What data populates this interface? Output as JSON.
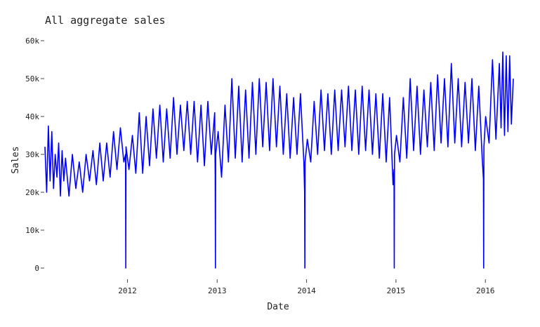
{
  "chart_data": {
    "type": "line",
    "title": "All aggregate sales",
    "xlabel": "Date",
    "ylabel": "Sales",
    "x_type": "date",
    "xlim": [
      "2011-01-29",
      "2016-04-24"
    ],
    "ylim": [
      0,
      60000
    ],
    "y_ticks": [
      0,
      10000,
      20000,
      30000,
      40000,
      50000,
      60000
    ],
    "y_tick_labels": [
      "0",
      "10k",
      "20k",
      "30k",
      "40k",
      "50k",
      "60k"
    ],
    "x_ticks": [
      "2012-01-01",
      "2013-01-01",
      "2014-01-01",
      "2015-01-01",
      "2016-01-01"
    ],
    "x_tick_labels": [
      "2012",
      "2013",
      "2014",
      "2015",
      "2016"
    ],
    "grid": false,
    "legend": "none",
    "series": [
      {
        "color": "#0000ff",
        "x": [
          "2011-01-29",
          "2011-02-05",
          "2011-02-12",
          "2011-02-19",
          "2011-02-26",
          "2011-03-05",
          "2011-03-12",
          "2011-03-19",
          "2011-03-26",
          "2011-04-02",
          "2011-04-09",
          "2011-04-16",
          "2011-04-23",
          "2011-05-07",
          "2011-05-21",
          "2011-06-04",
          "2011-06-18",
          "2011-07-02",
          "2011-07-16",
          "2011-07-30",
          "2011-08-13",
          "2011-08-27",
          "2011-09-10",
          "2011-09-24",
          "2011-10-08",
          "2011-10-22",
          "2011-11-05",
          "2011-11-19",
          "2011-12-03",
          "2011-12-17",
          "2011-12-24",
          "2011-12-25",
          "2011-12-26",
          "2012-01-07",
          "2012-01-21",
          "2012-02-04",
          "2012-02-18",
          "2012-03-03",
          "2012-03-17",
          "2012-03-31",
          "2012-04-14",
          "2012-04-28",
          "2012-05-12",
          "2012-05-26",
          "2012-06-09",
          "2012-06-23",
          "2012-07-07",
          "2012-07-21",
          "2012-08-04",
          "2012-08-18",
          "2012-09-01",
          "2012-09-15",
          "2012-09-29",
          "2012-10-13",
          "2012-10-27",
          "2012-11-10",
          "2012-11-24",
          "2012-12-08",
          "2012-12-22",
          "2012-12-24",
          "2012-12-25",
          "2012-12-26",
          "2013-01-05",
          "2013-01-19",
          "2013-02-02",
          "2013-02-16",
          "2013-03-02",
          "2013-03-16",
          "2013-03-30",
          "2013-04-13",
          "2013-04-27",
          "2013-05-11",
          "2013-05-25",
          "2013-06-08",
          "2013-06-22",
          "2013-07-06",
          "2013-07-20",
          "2013-08-03",
          "2013-08-17",
          "2013-08-31",
          "2013-09-14",
          "2013-09-28",
          "2013-10-12",
          "2013-10-26",
          "2013-11-09",
          "2013-11-23",
          "2013-12-07",
          "2013-12-21",
          "2013-12-24",
          "2013-12-25",
          "2013-12-26",
          "2014-01-04",
          "2014-01-18",
          "2014-02-01",
          "2014-02-15",
          "2014-03-01",
          "2014-03-15",
          "2014-03-29",
          "2014-04-12",
          "2014-04-26",
          "2014-05-10",
          "2014-05-24",
          "2014-06-07",
          "2014-06-21",
          "2014-07-05",
          "2014-07-19",
          "2014-08-02",
          "2014-08-16",
          "2014-08-30",
          "2014-09-13",
          "2014-09-27",
          "2014-10-11",
          "2014-10-25",
          "2014-11-08",
          "2014-11-22",
          "2014-12-06",
          "2014-12-20",
          "2014-12-24",
          "2014-12-25",
          "2014-12-26",
          "2015-01-03",
          "2015-01-17",
          "2015-01-31",
          "2015-02-14",
          "2015-02-28",
          "2015-03-14",
          "2015-03-28",
          "2015-04-11",
          "2015-04-25",
          "2015-05-09",
          "2015-05-23",
          "2015-06-06",
          "2015-06-20",
          "2015-07-04",
          "2015-07-18",
          "2015-08-01",
          "2015-08-15",
          "2015-08-29",
          "2015-09-12",
          "2015-09-26",
          "2015-10-10",
          "2015-10-24",
          "2015-11-07",
          "2015-11-21",
          "2015-12-05",
          "2015-12-19",
          "2015-12-24",
          "2015-12-25",
          "2015-12-26",
          "2016-01-02",
          "2016-01-16",
          "2016-01-30",
          "2016-02-13",
          "2016-02-27",
          "2016-03-05",
          "2016-03-12",
          "2016-03-19",
          "2016-03-26",
          "2016-04-02",
          "2016-04-09",
          "2016-04-16",
          "2016-04-24"
        ],
        "values": [
          32000,
          20000,
          37500,
          23000,
          36000,
          21000,
          30000,
          24000,
          33000,
          19000,
          31000,
          23000,
          29000,
          19000,
          30000,
          21000,
          28000,
          20000,
          30000,
          23000,
          31000,
          22000,
          33000,
          23000,
          33000,
          24000,
          36000,
          26000,
          37000,
          28000,
          30000,
          0,
          32000,
          26000,
          35000,
          25000,
          41000,
          25000,
          40000,
          27000,
          42000,
          29000,
          43000,
          28000,
          42000,
          29000,
          45000,
          30000,
          43000,
          31000,
          44000,
          30000,
          44000,
          28000,
          43000,
          27000,
          44000,
          30000,
          41000,
          25000,
          0,
          30000,
          36000,
          24000,
          43000,
          28000,
          50000,
          29000,
          48000,
          28000,
          47000,
          29000,
          49000,
          30000,
          50000,
          32000,
          49000,
          31000,
          50000,
          32000,
          48000,
          30000,
          46000,
          29000,
          45000,
          30000,
          46000,
          28000,
          20000,
          0,
          28000,
          34000,
          28000,
          44000,
          30000,
          47000,
          31000,
          46000,
          30000,
          47000,
          31000,
          47000,
          32000,
          48000,
          31000,
          47000,
          30000,
          48000,
          31000,
          47000,
          30000,
          46000,
          29000,
          46000,
          28000,
          45000,
          22000,
          26000,
          0,
          30000,
          35000,
          28000,
          45000,
          29000,
          50000,
          31000,
          48000,
          30000,
          47000,
          32000,
          49000,
          31000,
          51000,
          33000,
          50000,
          32000,
          54000,
          33000,
          50000,
          32000,
          49000,
          33000,
          50000,
          31000,
          48000,
          29000,
          23500,
          0,
          32000,
          40000,
          33000,
          55000,
          34000,
          54000,
          37000,
          57000,
          35000,
          56000,
          36000,
          56000,
          38000,
          50000
        ]
      }
    ]
  }
}
